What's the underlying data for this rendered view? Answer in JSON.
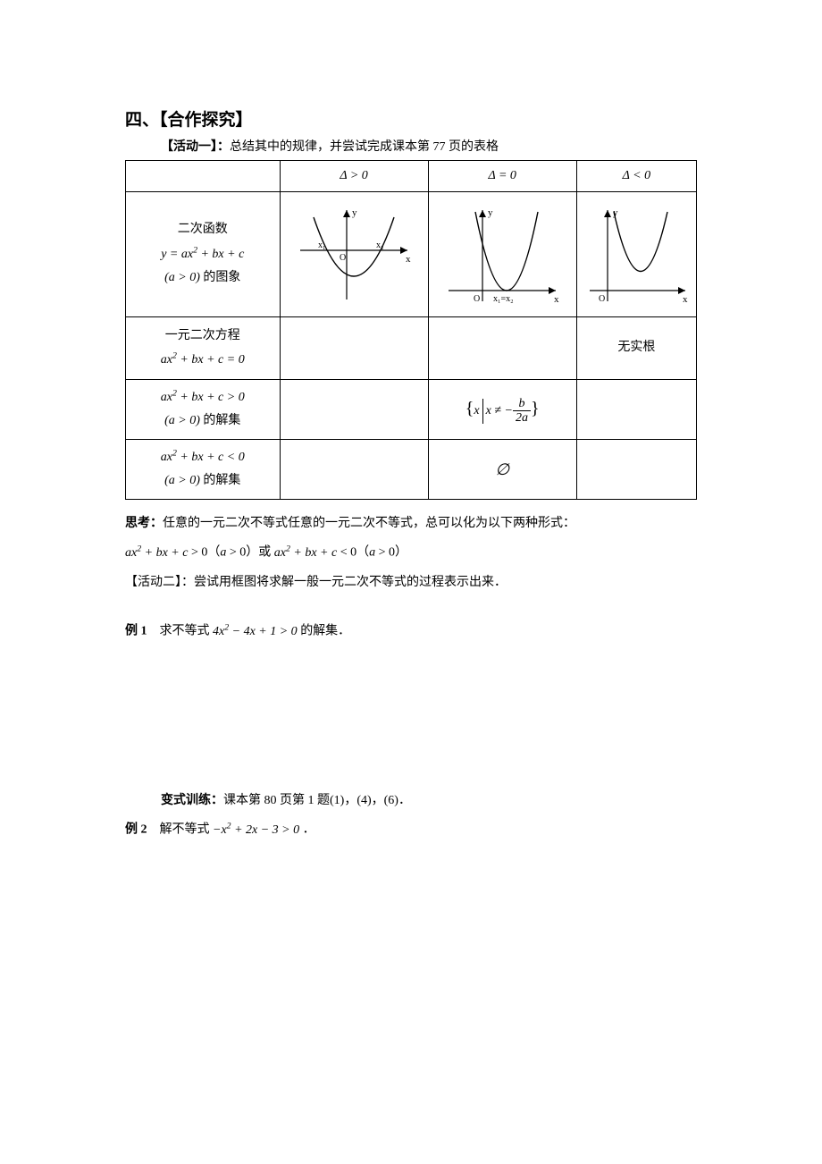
{
  "title": "四、【合作探究】",
  "activity1_prefix": "【活动一】：",
  "activity1_text": "总结其中的规律，并尝试完成课本第 77 页的表格",
  "table": {
    "headers": {
      "delta_pos": "Δ > 0",
      "delta_zero": "Δ = 0",
      "delta_neg": "Δ < 0"
    },
    "row_graph_label_l1": "二次函数",
    "row_graph_label_l2_html": "<span class='math'>y = ax<sup>2</sup> + bx + c</span>",
    "row_graph_label_l3_html": "<span class='math'>(a &gt; 0)</span> 的图象",
    "row_eq_label_l1": "一元二次方程",
    "row_eq_label_l2_html": "<span class='math'>ax<sup>2</sup> + bx + c = 0</span>",
    "row_eq_neg": "无实根",
    "row_gt_label_html": "<span class='math'>ax<sup>2</sup> + bx + c &gt; 0</span><br><span class='math'>(a &gt; 0)</span> 的解集",
    "row_gt_zero_html": "<span class='set-braces'>{</span><span class='math'>x</span><span style='display:inline-block;border-left:1px solid #000;height:28px;vertical-align:middle;margin:0 3px;'></span><span class='math'>x ≠ −</span><span class='frac'><span class='num math'>b</span><span class='den math'>2a</span></span><span class='set-braces'>}</span>",
    "row_lt_label_html": "<span class='math'>ax<sup>2</sup> + bx + c &lt; 0</span><br><span class='math'>(a &gt; 0)</span> 的解集",
    "row_lt_zero": "∅",
    "graphs": {
      "pos": {
        "roots": "two",
        "vertex_below_axis": true,
        "x1_label": "x₁",
        "x2_label": "x₂"
      },
      "zero": {
        "roots": "one",
        "label": "x₁=x₂"
      },
      "neg": {
        "roots": "none"
      },
      "axis_labels": {
        "x": "x",
        "y": "y"
      },
      "stroke": "#000000",
      "stroke_width": 1.2
    }
  },
  "thinking_label": "思考：",
  "thinking_text": "任意的一元二次不等式任意的一元二次不等式，总可以化为以下两种形式：",
  "thinking_formula_html": "<span class='math'>ax<sup>2</sup> + bx + c</span> &gt; 0（<span class='math'>a</span> &gt; 0）或 <span class='math'>ax<sup>2</sup> + bx + c</span> &lt; 0（<span class='math'>a</span> &gt; 0）",
  "activity2_prefix": "【活动二】：",
  "activity2_text": "尝试用框图将求解一般一元二次不等式的过程表示出来．",
  "example1_label": "例 1",
  "example1_text_html": "　求不等式 <span class='math'>4x<sup>2</sup> − 4x + 1 &gt; 0</span> 的解集．",
  "variation_label": "变式训练：",
  "variation_text": "课本第 80 页第 1 题(1)，(4)，(6)．",
  "example2_label": "例 2",
  "example2_text_html": "　解不等式 <span class='math'>−x<sup>2</sup> + 2x − 3 &gt; 0</span> ．",
  "colors": {
    "text": "#000000",
    "background": "#ffffff",
    "border": "#000000"
  }
}
